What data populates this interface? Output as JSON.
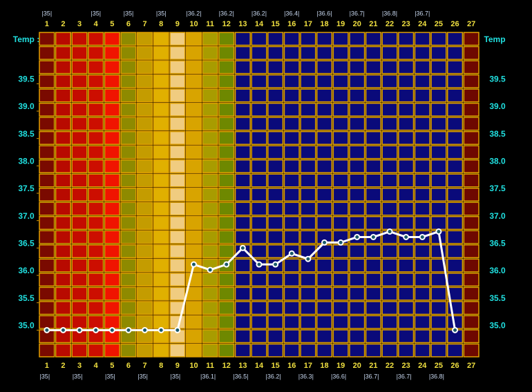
{
  "chart_data": {
    "type": "line",
    "ylabel_left": "Temp :",
    "ylabel_right": "Temp",
    "categories": [
      "1",
      "2",
      "3",
      "4",
      "5",
      "6",
      "7",
      "8",
      "9",
      "10",
      "11",
      "12",
      "13",
      "14",
      "15",
      "16",
      "17",
      "18",
      "19",
      "20",
      "21",
      "22",
      "23",
      "24",
      "25",
      "26",
      "27"
    ],
    "top_labels": [
      "|35|",
      null,
      null,
      "|35|",
      null,
      "|35|",
      null,
      "|35|",
      null,
      "|36.2|",
      null,
      "|36.2|",
      null,
      "|36.2|",
      null,
      "|36.4|",
      null,
      "|36.6|",
      null,
      "|36.7|",
      null,
      "|36.8|",
      null,
      "|36.7|",
      null,
      null,
      null
    ],
    "bottom_labels": [
      "|35|",
      null,
      "|35|",
      null,
      "|35|",
      null,
      "|35|",
      null,
      "|35|",
      null,
      "|36.1|",
      null,
      "|36.5|",
      null,
      "|36.2|",
      null,
      "|36.3|",
      null,
      "|36.6|",
      null,
      "|36.7|",
      null,
      "|36.7|",
      null,
      "|36.8|",
      null,
      null
    ],
    "series": [
      {
        "color": "#ffffff",
        "values": [
          35.0,
          35.0,
          35.0,
          35.0,
          35.0,
          35.0,
          35.0,
          35.0,
          35.0,
          36.2,
          36.1,
          36.2,
          36.5,
          36.2,
          36.2,
          36.4,
          36.3,
          36.6,
          36.6,
          36.7,
          36.7,
          36.8,
          36.7,
          36.7,
          36.8,
          35.0,
          null
        ]
      }
    ],
    "column_colors": [
      "#7a0a00",
      "#b80a00",
      "#c40c00",
      "#cc0e00",
      "#f01400",
      "#8e8a00",
      "#c49c00",
      "#e0b000",
      "#f0cc80",
      "#d8a400",
      "#a89c00",
      "#6e8800",
      "#0a0a7a",
      "#0a0a7a",
      "#0a0a7a",
      "#0a0a7a",
      "#0a0a7a",
      "#0a0a7a",
      "#0a0a7a",
      "#0a0a7a",
      "#0a0a7a",
      "#0a0a7a",
      "#0a0a7a",
      "#0a0a7a",
      "#0a0a7a",
      "#0a0a7a",
      "#6e0800"
    ],
    "ylim": [
      34.5,
      40.45
    ],
    "yticks": [
      {
        "value": 35,
        "label": "35.0"
      },
      35.5,
      {
        "value": 36,
        "label": "36.0"
      },
      36.5,
      {
        "value": 37,
        "label": "37.0"
      },
      37.5,
      {
        "value": 38,
        "label": "38.0"
      },
      38.5,
      {
        "value": 39,
        "label": "39.0"
      },
      39.5
    ]
  }
}
